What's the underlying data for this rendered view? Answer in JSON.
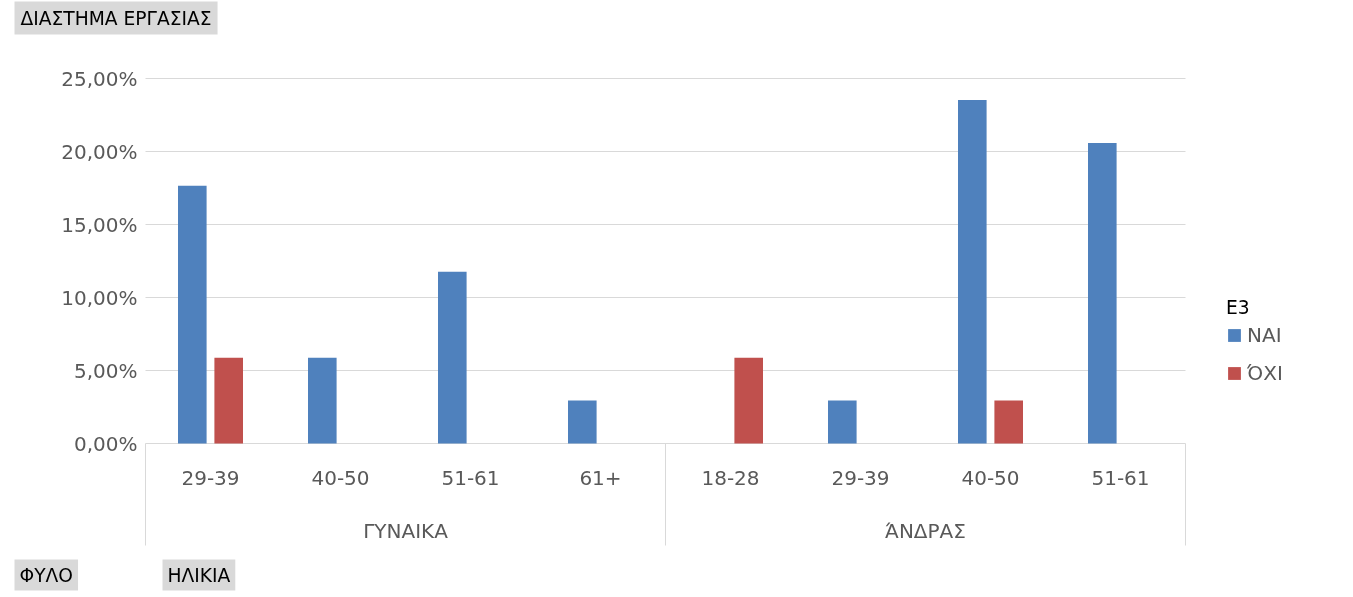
{
  "chart_data": {
    "type": "bar",
    "title": "ΔΙΑΣΤΗΜΑ ΕΡΓΑΣΙΑΣ",
    "legend_title": "Ε3",
    "categories": [
      "29-39",
      "40-50",
      "51-61",
      "61+",
      "18-28",
      "29-39",
      "40-50",
      "51-61"
    ],
    "series": [
      {
        "name": "ΝΑΙ",
        "color": "#4f81bd",
        "values": [
          17.65,
          5.88,
          11.76,
          2.94,
          null,
          2.94,
          23.53,
          20.59
        ]
      },
      {
        "name": "ΌΧΙ",
        "color": "#c0504d",
        "values": [
          5.88,
          null,
          null,
          null,
          5.88,
          null,
          2.94,
          null
        ]
      }
    ],
    "ylim": [
      0,
      25
    ],
    "yticks": [
      {
        "value": 0,
        "label": "0,00%"
      },
      {
        "value": 5,
        "label": "5,00%"
      },
      {
        "value": 10,
        "label": "10,00%"
      },
      {
        "value": 15,
        "label": "15,00%"
      },
      {
        "value": 20,
        "label": "20,00%"
      },
      {
        "value": 25,
        "label": "25,00%"
      }
    ],
    "annotations": [
      "ΓΥΝΑΙΚΑ",
      "ΆΝΔΡΑΣ",
      "ΦΥΛΟ",
      "ΗΛΙΚΙΑ"
    ],
    "grid": "y",
    "legend": "right"
  }
}
